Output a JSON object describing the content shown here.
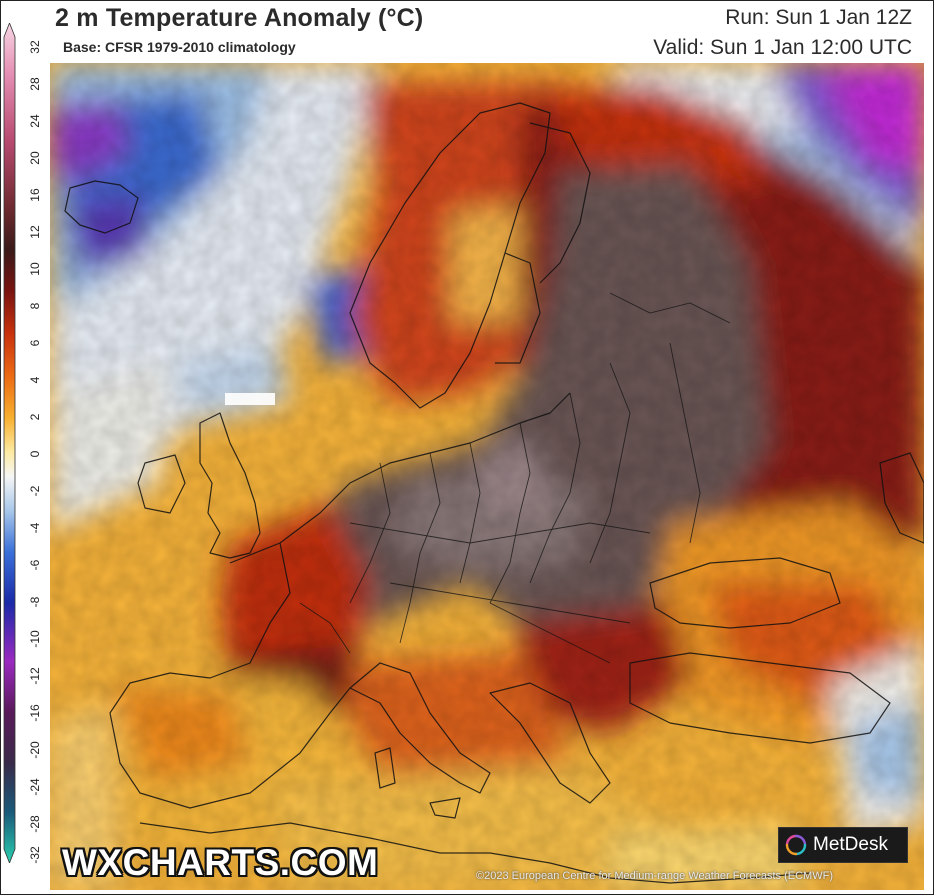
{
  "header": {
    "title": "2 m Temperature Anomaly (°C)",
    "subtitle": "Base: CFSR 1979-2010 climatology",
    "run": "Run: Sun 1 Jan 12Z",
    "valid": "Valid: Sun 1 Jan 12:00 UTC"
  },
  "scale": {
    "labels": [
      "32",
      "28",
      "24",
      "20",
      "16",
      "12",
      "10",
      "8",
      "6",
      "4",
      "2",
      "0",
      "-2",
      "-4",
      "-6",
      "-8",
      "-10",
      "-12",
      "-16",
      "-20",
      "-24",
      "-28",
      "-32"
    ],
    "colors": {
      "hot_top": "#f4c4d8",
      "pink": "#d84a8a",
      "dark_red": "#6b1216",
      "red": "#c8320e",
      "orange": "#f08a1a",
      "yellow": "#fcd86a",
      "white": "#f4f4f4",
      "light_blue": "#a9c8ea",
      "blue": "#2a4ec8",
      "purple": "#8a2ab8",
      "dark_magenta": "#4a1a4a",
      "teal_bottom": "#2ab8a8"
    }
  },
  "footer": {
    "brand": "WXCHARTS.COM",
    "partner": "MetDesk",
    "copyright": "©2023 European Centre for Medium-range Weather Forecasts (ECMWF)"
  }
}
